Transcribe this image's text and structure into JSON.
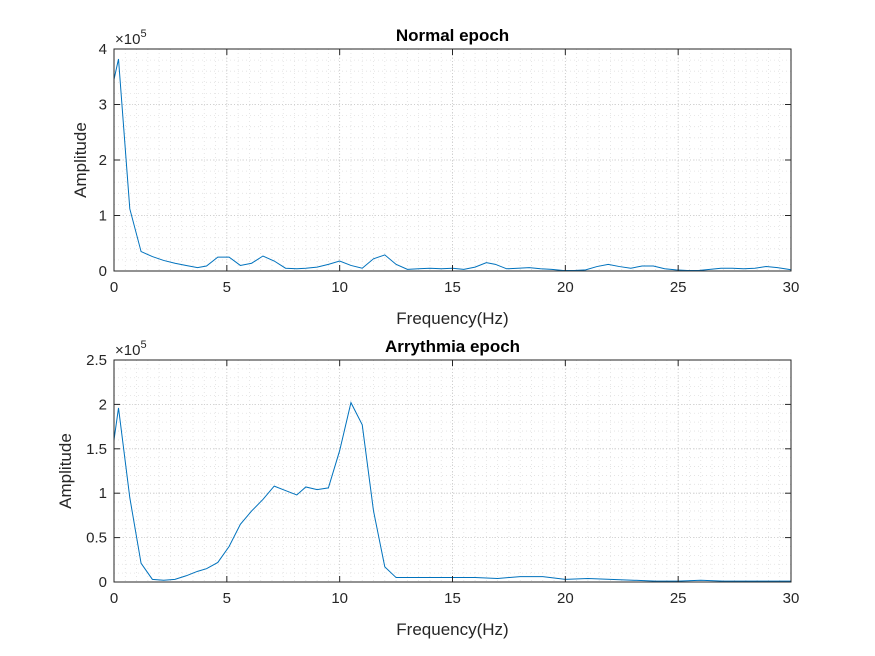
{
  "chart_data": [
    {
      "type": "line",
      "title": "Normal epoch",
      "xlabel": "Frequency(Hz)",
      "ylabel": "Amplitude",
      "multiplier": {
        "base": "×10",
        "exp": "5"
      },
      "xlim": [
        0,
        30
      ],
      "ylim": [
        0,
        4
      ],
      "xticks": [
        0,
        5,
        10,
        15,
        20,
        25,
        30
      ],
      "yticks": [
        0,
        1,
        2,
        3,
        4
      ],
      "ytick_labels": [
        "0",
        "1",
        "2",
        "3",
        "4"
      ],
      "grid": "major and minor dotted",
      "line_color": "#0072bd",
      "x": [
        0,
        0.2,
        0.7,
        1.2,
        1.7,
        2.2,
        2.7,
        3.2,
        3.7,
        4.1,
        4.6,
        5.1,
        5.6,
        6.1,
        6.6,
        7.1,
        7.6,
        8.1,
        8.5,
        9.0,
        9.5,
        10.0,
        10.5,
        11.0,
        11.5,
        12.0,
        12.5,
        13.0,
        13.5,
        14.0,
        14.5,
        15.0,
        15.5,
        16.0,
        16.5,
        16.9,
        17.4,
        17.9,
        18.4,
        18.9,
        19.4,
        19.9,
        20.4,
        20.9,
        21.4,
        21.9,
        22.4,
        22.9,
        23.4,
        23.9,
        24.4,
        24.9,
        25.4,
        25.9,
        26.4,
        26.9,
        27.4,
        27.9,
        28.4,
        28.9,
        29.4,
        29.9,
        30.0
      ],
      "y": [
        3.45,
        3.82,
        1.12,
        0.35,
        0.26,
        0.19,
        0.14,
        0.1,
        0.06,
        0.09,
        0.25,
        0.25,
        0.1,
        0.14,
        0.27,
        0.18,
        0.05,
        0.04,
        0.05,
        0.07,
        0.12,
        0.18,
        0.1,
        0.05,
        0.22,
        0.29,
        0.12,
        0.03,
        0.04,
        0.05,
        0.04,
        0.05,
        0.03,
        0.07,
        0.15,
        0.12,
        0.04,
        0.05,
        0.06,
        0.04,
        0.03,
        0.01,
        0.01,
        0.02,
        0.08,
        0.12,
        0.08,
        0.05,
        0.09,
        0.09,
        0.04,
        0.02,
        0.01,
        0.01,
        0.03,
        0.05,
        0.05,
        0.04,
        0.05,
        0.08,
        0.06,
        0.03,
        0.02
      ]
    },
    {
      "type": "line",
      "title": "Arrythmia epoch",
      "xlabel": "Frequency(Hz)",
      "ylabel": "Amplitude",
      "multiplier": {
        "base": "×10",
        "exp": "5"
      },
      "xlim": [
        0,
        30
      ],
      "ylim": [
        0,
        2.5
      ],
      "xticks": [
        0,
        5,
        10,
        15,
        20,
        25,
        30
      ],
      "yticks": [
        0,
        0.5,
        1,
        1.5,
        2,
        2.5
      ],
      "ytick_labels": [
        "0",
        "0.5",
        "1",
        "1.5",
        "2",
        "2.5"
      ],
      "grid": "major and minor dotted",
      "line_color": "#0072bd",
      "x": [
        0,
        0.2,
        0.7,
        1.2,
        1.7,
        2.2,
        2.7,
        3.2,
        3.7,
        4.1,
        4.6,
        5.1,
        5.6,
        6.1,
        6.6,
        7.1,
        7.6,
        8.1,
        8.5,
        9.0,
        9.5,
        10.0,
        10.5,
        11.0,
        11.5,
        12.0,
        12.5,
        13.0,
        14.0,
        15.0,
        16.0,
        17.0,
        18.0,
        19.0,
        20.0,
        21.0,
        22.0,
        23.0,
        24.0,
        25.0,
        26.0,
        27.0,
        28.0,
        29.0,
        30.0
      ],
      "y": [
        1.6,
        1.96,
        0.95,
        0.21,
        0.03,
        0.02,
        0.03,
        0.07,
        0.12,
        0.15,
        0.22,
        0.4,
        0.65,
        0.8,
        0.93,
        1.08,
        1.03,
        0.98,
        1.07,
        1.04,
        1.06,
        1.48,
        2.02,
        1.77,
        0.8,
        0.17,
        0.05,
        0.05,
        0.05,
        0.05,
        0.05,
        0.04,
        0.06,
        0.06,
        0.03,
        0.04,
        0.03,
        0.02,
        0.01,
        0.01,
        0.02,
        0.01,
        0.01,
        0.01,
        0.01
      ]
    }
  ]
}
